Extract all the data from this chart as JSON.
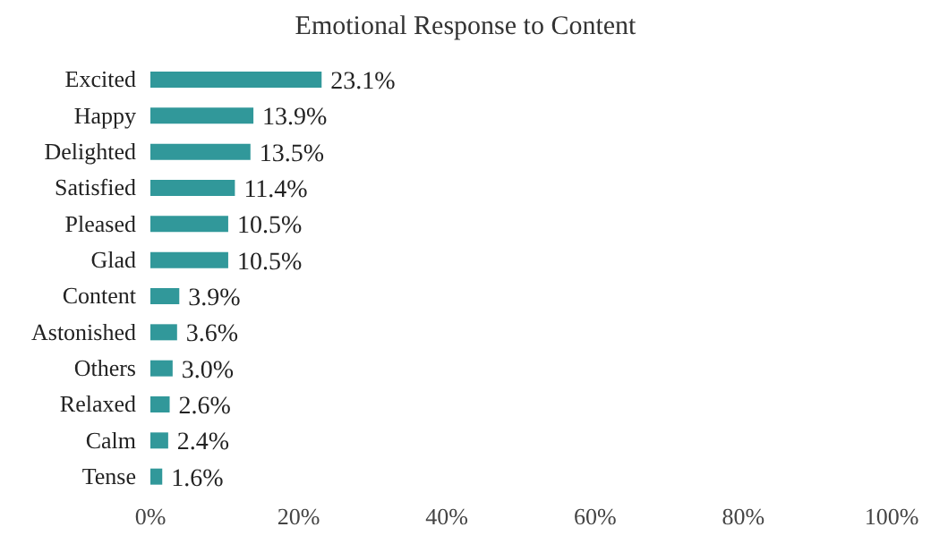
{
  "chart_data": {
    "type": "bar",
    "orientation": "horizontal",
    "title": "Emotional Response to Content",
    "categories": [
      "Excited",
      "Happy",
      "Delighted",
      "Satisfied",
      "Pleased",
      "Glad",
      "Content",
      "Astonished",
      "Others",
      "Relaxed",
      "Calm",
      "Tense"
    ],
    "values": [
      23.1,
      13.9,
      13.5,
      11.4,
      10.5,
      10.5,
      3.9,
      3.6,
      3.0,
      2.6,
      2.4,
      1.6
    ],
    "value_labels": [
      "23.1%",
      "13.9%",
      "13.5%",
      "11.4%",
      "10.5%",
      "10.5%",
      "3.9%",
      "3.6%",
      "3.0%",
      "2.6%",
      "2.4%",
      "1.6%"
    ],
    "color": "#31989a",
    "xlim": [
      0,
      100
    ],
    "xticks": [
      {
        "value": 0,
        "label": "0%"
      },
      {
        "value": 20,
        "label": "20%"
      },
      {
        "value": 40,
        "label": "40%"
      },
      {
        "value": 60,
        "label": "60%"
      },
      {
        "value": 80,
        "label": "80%"
      },
      {
        "value": 100,
        "label": "100%"
      }
    ],
    "grid": false,
    "legend": false
  }
}
